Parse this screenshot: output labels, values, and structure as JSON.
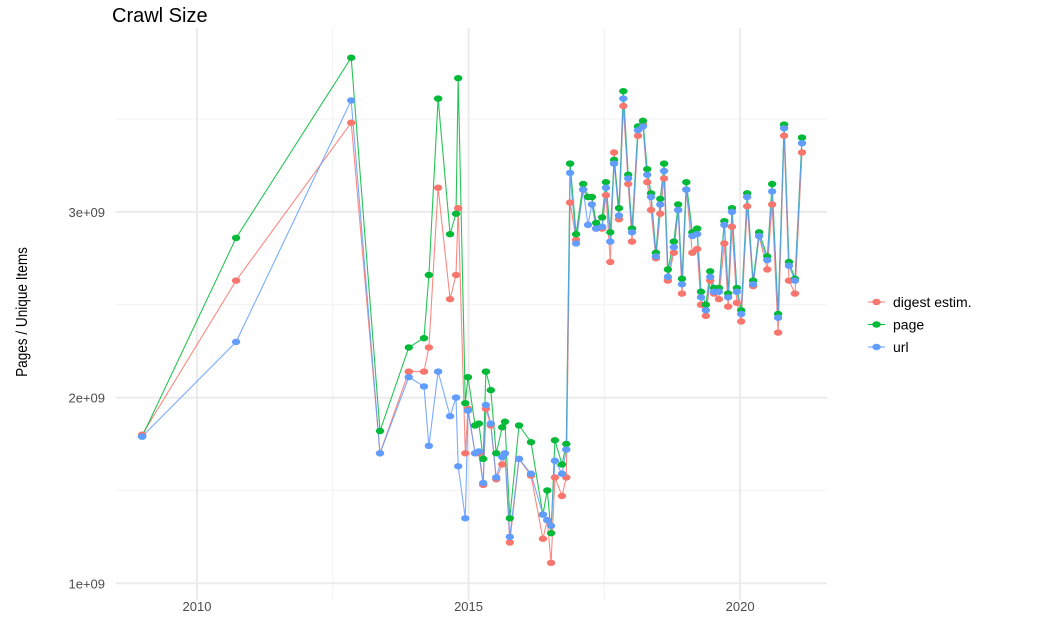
{
  "chart_data": {
    "type": "line",
    "title": "Crawl Size",
    "xlabel": "",
    "ylabel": "Pages / Unique Items",
    "xlim": [
      2008.5,
      2021.6
    ],
    "ylim": [
      910000000.0,
      3990000000.0
    ],
    "x_ticks": [
      {
        "value": 2010,
        "label": "2010"
      },
      {
        "value": 2015,
        "label": "2015"
      },
      {
        "value": 2020,
        "label": "2020"
      }
    ],
    "y_ticks": [
      {
        "value": 1000000000.0,
        "label": "1e+09"
      },
      {
        "value": 2000000000.0,
        "label": "2e+09"
      },
      {
        "value": 3000000000.0,
        "label": "3e+09"
      }
    ],
    "grid": true,
    "legend_placement": "right",
    "x": [
      2008.99,
      2010.72,
      2012.84,
      2013.37,
      2013.9,
      2014.18,
      2014.27,
      2014.44,
      2014.66,
      2014.77,
      2014.81,
      2014.94,
      2014.99,
      2015.12,
      2015.19,
      2015.27,
      2015.32,
      2015.41,
      2015.51,
      2015.62,
      2015.67,
      2015.76,
      2015.93,
      2016.15,
      2016.37,
      2016.45,
      2016.52,
      2016.59,
      2016.72,
      2016.8,
      2016.87,
      2016.98,
      2017.11,
      2017.2,
      2017.27,
      2017.35,
      2017.46,
      2017.53,
      2017.61,
      2017.68,
      2017.77,
      2017.85,
      2017.94,
      2018.01,
      2018.12,
      2018.21,
      2018.29,
      2018.36,
      2018.45,
      2018.53,
      2018.6,
      2018.67,
      2018.78,
      2018.86,
      2018.93,
      2019.01,
      2019.12,
      2019.21,
      2019.28,
      2019.37,
      2019.45,
      2019.52,
      2019.61,
      2019.71,
      2019.78,
      2019.85,
      2019.94,
      2020.02,
      2020.13,
      2020.24,
      2020.35,
      2020.5,
      2020.59,
      2020.7,
      2020.81,
      2020.9,
      2021.01,
      2021.14
    ],
    "series": [
      {
        "name": "digest estim.",
        "color": "#F8766D",
        "values": [
          1800000000.0,
          2630000000.0,
          3480000000.0,
          1700000000.0,
          2140000000.0,
          2140000000.0,
          2270000000.0,
          3130000000.0,
          2530000000.0,
          2660000000.0,
          3020000000.0,
          1700000000.0,
          1940000000.0,
          1700000000.0,
          1700000000.0,
          1530000000.0,
          1940000000.0,
          1850000000.0,
          1560000000.0,
          1640000000.0,
          1700000000.0,
          1220000000.0,
          1670000000.0,
          1580000000.0,
          1240000000.0,
          1340000000.0,
          1110000000.0,
          1570000000.0,
          1470000000.0,
          1570000000.0,
          3050000000.0,
          2850000000.0,
          3120000000.0,
          3080000000.0,
          3080000000.0,
          2910000000.0,
          2910000000.0,
          3090000000.0,
          2730000000.0,
          3320000000.0,
          2960000000.0,
          3570000000.0,
          3150000000.0,
          2840000000.0,
          3410000000.0,
          3470000000.0,
          3160000000.0,
          3010000000.0,
          2750000000.0,
          2990000000.0,
          3180000000.0,
          2630000000.0,
          2780000000.0,
          3010000000.0,
          2560000000.0,
          3120000000.0,
          2780000000.0,
          2800000000.0,
          2500000000.0,
          2440000000.0,
          2630000000.0,
          2560000000.0,
          2530000000.0,
          2830000000.0,
          2490000000.0,
          2920000000.0,
          2510000000.0,
          2410000000.0,
          3030000000.0,
          2600000000.0,
          2870000000.0,
          2690000000.0,
          3040000000.0,
          2350000000.0,
          3410000000.0,
          2630000000.0,
          2560000000.0,
          3320000000.0
        ]
      },
      {
        "name": "page",
        "color": "#00BA38",
        "values": [
          1790000000.0,
          2860000000.0,
          3830000000.0,
          1820000000.0,
          2270000000.0,
          2320000000.0,
          2660000000.0,
          3610000000.0,
          2880000000.0,
          2990000000.0,
          3720000000.0,
          1970000000.0,
          2110000000.0,
          1850000000.0,
          1860000000.0,
          1670000000.0,
          2140000000.0,
          2040000000.0,
          1700000000.0,
          1840000000.0,
          1870000000.0,
          1350000000.0,
          1850000000.0,
          1760000000.0,
          1370000000.0,
          1500000000.0,
          1270000000.0,
          1770000000.0,
          1640000000.0,
          1750000000.0,
          3260000000.0,
          2880000000.0,
          3150000000.0,
          3080000000.0,
          3080000000.0,
          2940000000.0,
          2970000000.0,
          3160000000.0,
          2890000000.0,
          3280000000.0,
          3020000000.0,
          3650000000.0,
          3200000000.0,
          2910000000.0,
          3460000000.0,
          3490000000.0,
          3230000000.0,
          3100000000.0,
          2780000000.0,
          3070000000.0,
          3260000000.0,
          2690000000.0,
          2840000000.0,
          3040000000.0,
          2640000000.0,
          3160000000.0,
          2890000000.0,
          2910000000.0,
          2570000000.0,
          2500000000.0,
          2680000000.0,
          2590000000.0,
          2590000000.0,
          2950000000.0,
          2560000000.0,
          3020000000.0,
          2590000000.0,
          2470000000.0,
          3100000000.0,
          2630000000.0,
          2890000000.0,
          2760000000.0,
          3150000000.0,
          2450000000.0,
          3470000000.0,
          2730000000.0,
          2640000000.0,
          3400000000.0
        ]
      },
      {
        "name": "url",
        "color": "#619CFF",
        "values": [
          1790000000.0,
          2300000000.0,
          3600000000.0,
          1700000000.0,
          2110000000.0,
          2060000000.0,
          1740000000.0,
          2140000000.0,
          1900000000.0,
          2000000000.0,
          1630000000.0,
          1350000000.0,
          1930000000.0,
          1700000000.0,
          1710000000.0,
          1540000000.0,
          1960000000.0,
          1860000000.0,
          1570000000.0,
          1680000000.0,
          1700000000.0,
          1250000000.0,
          1670000000.0,
          1590000000.0,
          1370000000.0,
          1340000000.0,
          1310000000.0,
          1660000000.0,
          1590000000.0,
          1720000000.0,
          3210000000.0,
          2830000000.0,
          3120000000.0,
          2930000000.0,
          3040000000.0,
          2910000000.0,
          2920000000.0,
          3130000000.0,
          2840000000.0,
          3260000000.0,
          2980000000.0,
          3610000000.0,
          3180000000.0,
          2890000000.0,
          3440000000.0,
          3460000000.0,
          3200000000.0,
          3080000000.0,
          2760000000.0,
          3040000000.0,
          3220000000.0,
          2650000000.0,
          2810000000.0,
          3010000000.0,
          2610000000.0,
          3120000000.0,
          2870000000.0,
          2880000000.0,
          2540000000.0,
          2470000000.0,
          2650000000.0,
          2570000000.0,
          2570000000.0,
          2930000000.0,
          2540000000.0,
          3000000000.0,
          2570000000.0,
          2450000000.0,
          3080000000.0,
          2610000000.0,
          2870000000.0,
          2740000000.0,
          3110000000.0,
          2430000000.0,
          3450000000.0,
          2710000000.0,
          2630000000.0,
          3370000000.0
        ]
      }
    ]
  }
}
